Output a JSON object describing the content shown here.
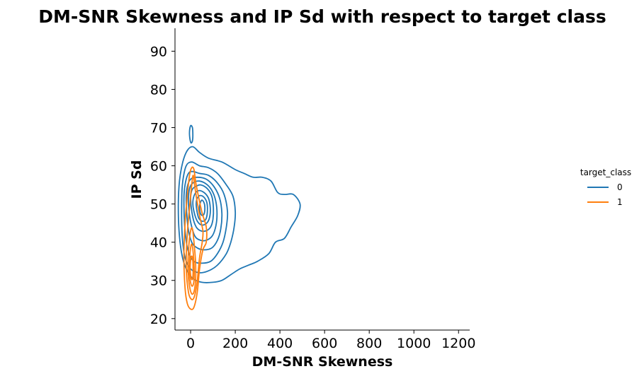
{
  "chart_data": {
    "type": "kde-contour",
    "title": "DM-SNR Skewness and IP Sd with respect to target class",
    "xlabel": "DM-SNR Skewness",
    "ylabel": "IP Sd",
    "xlim": [
      -70,
      1250
    ],
    "ylim": [
      17,
      96
    ],
    "xticks": [
      0,
      200,
      400,
      600,
      800,
      1000,
      1200
    ],
    "yticks": [
      20,
      30,
      40,
      50,
      60,
      70,
      80,
      90
    ],
    "legend": {
      "title": "target_class",
      "placement": "right"
    },
    "colors": {
      "0": "#1f77b4",
      "1": "#ff7f0e"
    },
    "series": [
      {
        "name": "0",
        "color": "#1f77b4",
        "contours": [
          [
            [
              -55,
              50
            ],
            [
              -50,
              56
            ],
            [
              -35,
              61
            ],
            [
              -15,
              64
            ],
            [
              10,
              65
            ],
            [
              40,
              63.5
            ],
            [
              80,
              62
            ],
            [
              140,
              61
            ],
            [
              200,
              59
            ],
            [
              240,
              58
            ],
            [
              280,
              57
            ],
            [
              320,
              57
            ],
            [
              360,
              56
            ],
            [
              390,
              53
            ],
            [
              420,
              52.5
            ],
            [
              460,
              52.5
            ],
            [
              490,
              50
            ],
            [
              480,
              47
            ],
            [
              450,
              44
            ],
            [
              420,
              41
            ],
            [
              380,
              40
            ],
            [
              350,
              37
            ],
            [
              300,
              35
            ],
            [
              260,
              34
            ],
            [
              220,
              33
            ],
            [
              180,
              31.5
            ],
            [
              140,
              30
            ],
            [
              100,
              29.5
            ],
            [
              50,
              29.5
            ],
            [
              10,
              30.5
            ],
            [
              -20,
              33
            ],
            [
              -40,
              37
            ],
            [
              -52,
              43
            ]
          ],
          [
            [
              -3,
              67
            ],
            [
              -5,
              69
            ],
            [
              0,
              70.5
            ],
            [
              8,
              70
            ],
            [
              10,
              68
            ],
            [
              8,
              66.5
            ],
            [
              2,
              66
            ]
          ],
          [
            [
              -40,
              51
            ],
            [
              -35,
              56
            ],
            [
              -20,
              60
            ],
            [
              5,
              61
            ],
            [
              40,
              60
            ],
            [
              80,
              59.5
            ],
            [
              120,
              58
            ],
            [
              160,
              55
            ],
            [
              190,
              52
            ],
            [
              200,
              48
            ],
            [
              195,
              44
            ],
            [
              180,
              40
            ],
            [
              160,
              37
            ],
            [
              120,
              34
            ],
            [
              80,
              32.5
            ],
            [
              40,
              32
            ],
            [
              0,
              33
            ],
            [
              -25,
              36
            ],
            [
              -38,
              42
            ]
          ],
          [
            [
              -30,
              51
            ],
            [
              -25,
              55
            ],
            [
              -10,
              58
            ],
            [
              10,
              58.5
            ],
            [
              40,
              58
            ],
            [
              80,
              57.5
            ],
            [
              120,
              55.5
            ],
            [
              150,
              52.5
            ],
            [
              165,
              48
            ],
            [
              160,
              44
            ],
            [
              145,
              40
            ],
            [
              120,
              37
            ],
            [
              90,
              35
            ],
            [
              50,
              34.5
            ],
            [
              15,
              35
            ],
            [
              -10,
              37.5
            ],
            [
              -25,
              43
            ]
          ],
          [
            [
              -20,
              51
            ],
            [
              -15,
              54.5
            ],
            [
              0,
              56.5
            ],
            [
              30,
              57
            ],
            [
              70,
              56.5
            ],
            [
              105,
              54.5
            ],
            [
              130,
              51.5
            ],
            [
              140,
              47.5
            ],
            [
              135,
              43.5
            ],
            [
              120,
              40.5
            ],
            [
              95,
              38.5
            ],
            [
              60,
              38
            ],
            [
              30,
              38.5
            ],
            [
              5,
              40
            ],
            [
              -12,
              44
            ]
          ],
          [
            [
              -10,
              51
            ],
            [
              -5,
              54
            ],
            [
              10,
              55.5
            ],
            [
              40,
              56
            ],
            [
              75,
              55
            ],
            [
              100,
              53
            ],
            [
              115,
              50
            ],
            [
              118,
              46.5
            ],
            [
              110,
              43.5
            ],
            [
              95,
              41.5
            ],
            [
              70,
              40.5
            ],
            [
              45,
              40.5
            ],
            [
              20,
              41.5
            ],
            [
              3,
              44.5
            ],
            [
              -7,
              48
            ]
          ],
          [
            [
              0,
              51
            ],
            [
              5,
              53.5
            ],
            [
              20,
              54.5
            ],
            [
              45,
              55
            ],
            [
              75,
              54
            ],
            [
              95,
              52
            ],
            [
              102,
              49
            ],
            [
              100,
              46
            ],
            [
              90,
              44
            ],
            [
              70,
              43
            ],
            [
              45,
              43
            ],
            [
              25,
              44
            ],
            [
              10,
              46.5
            ]
          ],
          [
            [
              10,
              50.5
            ],
            [
              18,
              52.5
            ],
            [
              35,
              53.5
            ],
            [
              60,
              53
            ],
            [
              80,
              51.5
            ],
            [
              88,
              49
            ],
            [
              85,
              46.5
            ],
            [
              72,
              45
            ],
            [
              50,
              44.5
            ],
            [
              30,
              45.5
            ],
            [
              15,
              48
            ]
          ],
          [
            [
              25,
              50
            ],
            [
              35,
              52
            ],
            [
              55,
              52
            ],
            [
              72,
              50.5
            ],
            [
              75,
              48
            ],
            [
              68,
              46
            ],
            [
              52,
              45.5
            ],
            [
              35,
              46.5
            ]
          ],
          [
            [
              40,
              49.5
            ],
            [
              50,
              51
            ],
            [
              62,
              50
            ],
            [
              63,
              48
            ],
            [
              55,
              47
            ],
            [
              44,
              47.5
            ]
          ]
        ]
      },
      {
        "name": "1",
        "color": "#ff7f0e",
        "contours": [
          [
            [
              -30,
              36
            ],
            [
              -25,
              45
            ],
            [
              -15,
              52
            ],
            [
              -5,
              57.5
            ],
            [
              5,
              59.5
            ],
            [
              15,
              59
            ],
            [
              25,
              55
            ],
            [
              50,
              48
            ],
            [
              70,
              44
            ],
            [
              70,
              40
            ],
            [
              55,
              38
            ],
            [
              40,
              33
            ],
            [
              30,
              27
            ],
            [
              15,
              23
            ],
            [
              0,
              22.5
            ],
            [
              -15,
              24
            ],
            [
              -25,
              28
            ]
          ],
          [
            [
              -20,
              34
            ],
            [
              -15,
              42
            ],
            [
              -5,
              49
            ],
            [
              5,
              55
            ],
            [
              12,
              57.5
            ],
            [
              20,
              54
            ],
            [
              40,
              47
            ],
            [
              55,
              43
            ],
            [
              52,
              40
            ],
            [
              40,
              36
            ],
            [
              30,
              30
            ],
            [
              18,
              26
            ],
            [
              5,
              25
            ],
            [
              -10,
              27
            ]
          ],
          [
            [
              -12,
              33
            ],
            [
              -8,
              39
            ],
            [
              0,
              43
            ],
            [
              8,
              43.5
            ],
            [
              15,
              40
            ],
            [
              22,
              35
            ],
            [
              22,
              30
            ],
            [
              15,
              27
            ],
            [
              5,
              26.5
            ],
            [
              -5,
              28.5
            ]
          ],
          [
            [
              -6,
              33
            ],
            [
              -2,
              37.5
            ],
            [
              5,
              39.5
            ],
            [
              12,
              37
            ],
            [
              16,
              33
            ],
            [
              14,
              29.5
            ],
            [
              6,
              28.5
            ],
            [
              -2,
              30
            ]
          ],
          [
            [
              -2,
              33
            ],
            [
              2,
              36
            ],
            [
              8,
              36
            ],
            [
              11,
              33
            ],
            [
              9,
              30.5
            ],
            [
              3,
              30.5
            ]
          ]
        ]
      }
    ]
  }
}
